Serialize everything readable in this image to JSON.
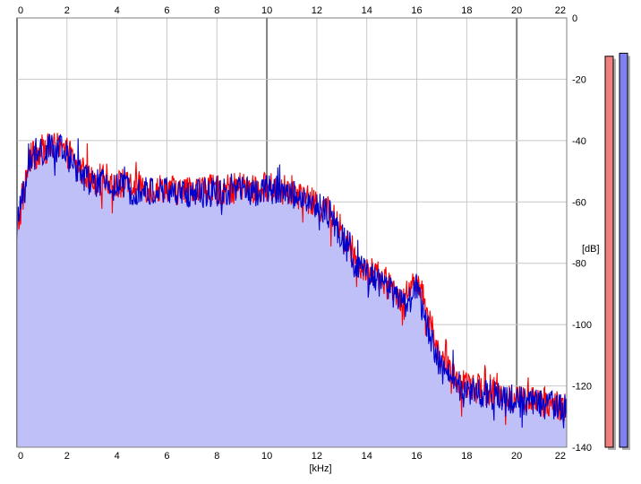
{
  "chart_data": {
    "type": "area",
    "title": "",
    "xlabel": "[kHz]",
    "ylabel": "[dB]",
    "xlim": [
      0,
      22
    ],
    "ylim": [
      -140,
      0
    ],
    "x_ticks": [
      "0",
      "2",
      "4",
      "6",
      "8",
      "10",
      "12",
      "14",
      "16",
      "18",
      "20",
      "22"
    ],
    "y_ticks": [
      "0",
      "-20",
      "-40",
      "-60",
      "-80",
      "-100",
      "-120",
      "-140"
    ],
    "x_major_every": 10,
    "grid": true,
    "legend": "none",
    "series": [
      {
        "color": "#ff0000",
        "x": [
          0.0,
          0.5,
          1.0,
          1.5,
          2.0,
          2.5,
          3.0,
          3.5,
          4.0,
          4.5,
          5.0,
          5.5,
          6.0,
          6.5,
          7.0,
          7.5,
          8.0,
          8.5,
          9.0,
          9.5,
          10.0,
          10.5,
          11.0,
          11.5,
          12.0,
          12.5,
          13.0,
          13.5,
          14.0,
          14.5,
          15.0,
          15.5,
          16.0,
          16.5,
          17.0,
          17.5,
          18.0,
          18.5,
          19.0,
          19.5,
          20.0,
          20.5,
          21.0,
          21.5,
          22.0
        ],
        "y": [
          -70,
          -46,
          -43,
          -42,
          -44,
          -49,
          -53,
          -52,
          -54,
          -55,
          -55,
          -56,
          -55,
          -57,
          -56,
          -56,
          -56,
          -56,
          -55,
          -56,
          -55,
          -56,
          -56,
          -59,
          -61,
          -63,
          -70,
          -78,
          -82,
          -85,
          -88,
          -92,
          -84,
          -99,
          -112,
          -118,
          -120,
          -121,
          -122,
          -123,
          -124,
          -125,
          -125,
          -126,
          -127
        ]
      },
      {
        "color": "#0000cc",
        "x": [
          0.0,
          0.5,
          1.0,
          1.5,
          2.0,
          2.5,
          3.0,
          3.5,
          4.0,
          4.5,
          5.0,
          5.5,
          6.0,
          6.5,
          7.0,
          7.5,
          8.0,
          8.5,
          9.0,
          9.5,
          10.0,
          10.5,
          11.0,
          11.5,
          12.0,
          12.5,
          13.0,
          13.5,
          14.0,
          14.5,
          15.0,
          15.5,
          16.0,
          16.5,
          17.0,
          17.5,
          18.0,
          18.5,
          19.0,
          19.5,
          20.0,
          20.5,
          21.0,
          21.5,
          22.0
        ],
        "y": [
          -68,
          -47,
          -44,
          -42,
          -45,
          -50,
          -54,
          -54,
          -55,
          -56,
          -56,
          -57,
          -56,
          -58,
          -57,
          -57,
          -57,
          -57,
          -56,
          -57,
          -56,
          -56,
          -57,
          -59,
          -61,
          -64,
          -71,
          -80,
          -84,
          -86,
          -89,
          -94,
          -88,
          -103,
          -115,
          -119,
          -121,
          -122,
          -123,
          -124,
          -124,
          -125,
          -126,
          -126,
          -127
        ]
      }
    ],
    "fill_color": "#c0c0f8",
    "meters": [
      {
        "color": "#f08080",
        "level": -12.5
      },
      {
        "color": "#8080f0",
        "level": -11.5
      }
    ]
  }
}
